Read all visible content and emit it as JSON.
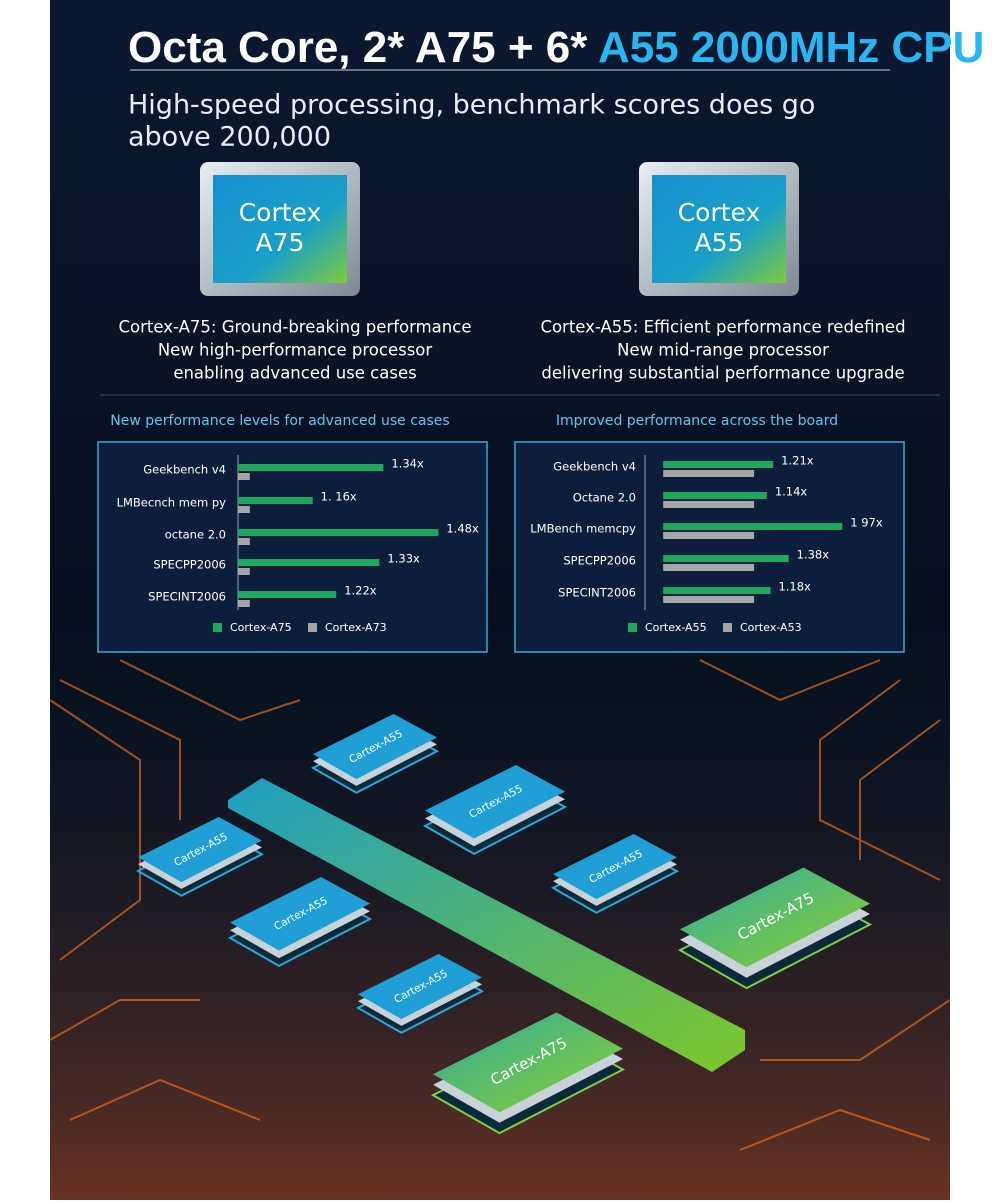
{
  "header": {
    "title_white": "Octa Core, 2* A75 + 6* ",
    "title_blue": "A55 2000MHz CPU",
    "subtitle": [
      "High-speed processing, benchmark scores does go",
      "above 200,000"
    ]
  },
  "cores": [
    {
      "label": [
        "Cortex",
        "A75"
      ],
      "description": [
        "Cortex-A75: Ground-breaking performance",
        "New high-performance processor",
        "enabling advanced use cases"
      ]
    },
    {
      "label": [
        "Cortex",
        "A55"
      ],
      "description": [
        "Cortex-A55: Efficient performance redefined",
        "New mid-range processor",
        "delivering substantial performance upgrade"
      ]
    }
  ],
  "chart_data": [
    {
      "type": "bar",
      "orientation": "horizontal",
      "title": "New performance levels for advanced use cases",
      "categories": [
        "Geekbench v4",
        "LMBecnch mem py",
        "octane 2.0",
        "SPECPP2006",
        "SPECINT2006"
      ],
      "series": [
        {
          "name": "Cortex-A75",
          "color": "#1ea85c",
          "values": [
            1.34,
            1.16,
            1.48,
            1.33,
            1.22
          ],
          "value_labels": [
            "1.34x",
            "1. 16x",
            "1.48x",
            "1.33x",
            "1.22x"
          ]
        },
        {
          "name": "Cortex-A73",
          "color": "#a6a6a6",
          "values": [
            1,
            1,
            1,
            1,
            1
          ]
        }
      ],
      "xlim": [
        0.97,
        1.53
      ]
    },
    {
      "type": "bar",
      "orientation": "horizontal",
      "title": "Improved performance across the board",
      "categories": [
        "Geekbench v4",
        "Octane 2.0",
        "LMBench memcpy",
        "SPECPP2006",
        "SPECINT2006"
      ],
      "series": [
        {
          "name": "Cortex-A55",
          "color": "#1ea85c",
          "values": [
            1.21,
            1.14,
            1.97,
            1.38,
            1.18
          ],
          "value_labels": [
            "1.21x",
            "1.14x",
            "1 97x",
            "1.38x",
            "1.18x"
          ]
        },
        {
          "name": "Cortex-A53",
          "color": "#a6a6a6",
          "values": [
            1,
            1,
            1,
            1,
            1
          ]
        }
      ],
      "xlim": [
        -0.2,
        2.0
      ]
    }
  ],
  "diagram": {
    "chips": [
      {
        "label": "Cartex-A55",
        "kind": "A55"
      },
      {
        "label": "Cartex-A55",
        "kind": "A55"
      },
      {
        "label": "Cartex-A55",
        "kind": "A55"
      },
      {
        "label": "Cartex-A55",
        "kind": "A55"
      },
      {
        "label": "Cartex-A55",
        "kind": "A55"
      },
      {
        "label": "Cartex-A55",
        "kind": "A55"
      },
      {
        "label": "Cartex-A75",
        "kind": "A75"
      },
      {
        "label": "Cartex-A75",
        "kind": "A75"
      }
    ]
  }
}
